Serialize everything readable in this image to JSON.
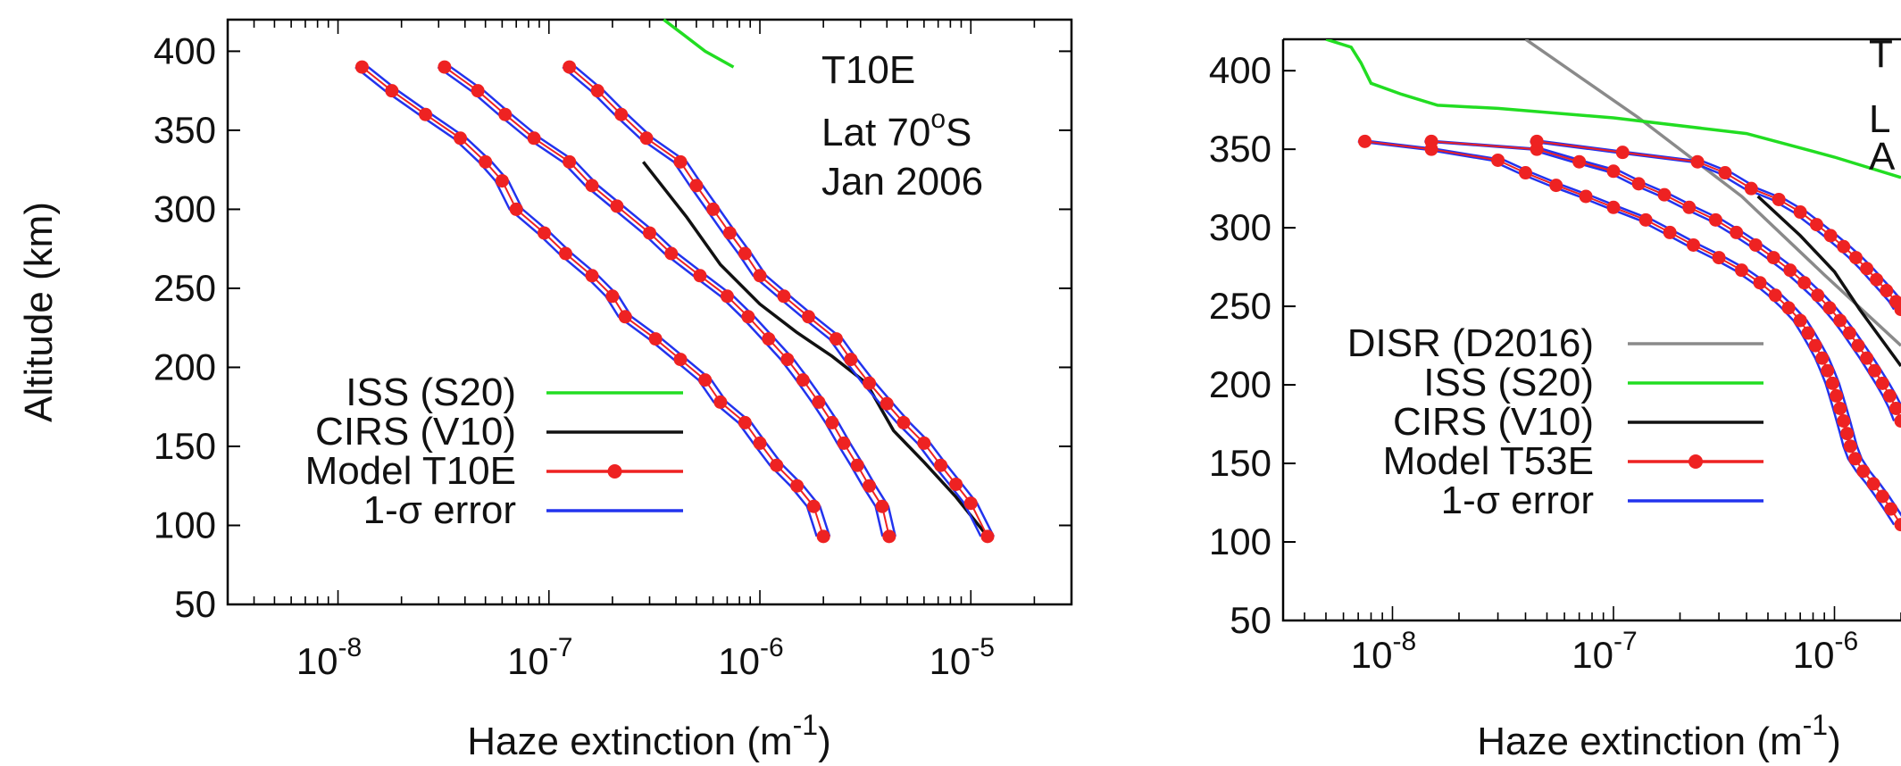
{
  "figure": {
    "colors": {
      "iss": "#22dd22",
      "cirs": "#111111",
      "model": "#ee2222",
      "error": "#2233ee",
      "disr": "#8a8a8a"
    }
  },
  "chart_data": [
    {
      "type": "line",
      "panel": "left",
      "xscale": "log",
      "xlim": [
        3e-09,
        3e-05
      ],
      "ylim": [
        50,
        420
      ],
      "xlabel": "Haze extinction (m",
      "xlabel_sup": "-1",
      "xlabel_end": ")",
      "ylabel": "Altitude (km)",
      "y_ticks": [
        400,
        350,
        300,
        250,
        200,
        150,
        100,
        50
      ],
      "x_ticks": [
        {
          "value": 1e-08,
          "base": "10",
          "exp": "-8"
        },
        {
          "value": 1e-07,
          "base": "10",
          "exp": "-7"
        },
        {
          "value": 1e-06,
          "base": "10",
          "exp": "-6"
        },
        {
          "value": 1e-05,
          "base": "10",
          "exp": "-5"
        }
      ],
      "annotation": {
        "line1": "T10E",
        "line2_pre": "Lat 70",
        "line2_sup": "o",
        "line2_post": "S",
        "line3": "Jan 2006"
      },
      "legend": [
        {
          "label": "ISS (S20)",
          "key": "iss"
        },
        {
          "label": "CIRS (V10)",
          "key": "cirs"
        },
        {
          "label": "Model T10E",
          "key": "model"
        },
        {
          "label": "1-σ error",
          "key": "error"
        }
      ],
      "series": [
        {
          "name": "ISS (S20)",
          "key": "iss",
          "points": [
            [
              3.5e-07,
              420
            ],
            [
              4.2e-07,
              412
            ],
            [
              5.5e-07,
              400
            ],
            [
              7.5e-07,
              390
            ]
          ]
        },
        {
          "name": "CIRS (V10)",
          "key": "cirs",
          "points": [
            [
              2.8e-07,
              330
            ],
            [
              4.5e-07,
              295
            ],
            [
              6.5e-07,
              265
            ],
            [
              1e-06,
              240
            ],
            [
              1.5e-06,
              222
            ],
            [
              2.2e-06,
              207
            ],
            [
              3.2e-06,
              190
            ],
            [
              4.3e-06,
              160
            ],
            [
              6e-06,
              140
            ],
            [
              8.5e-06,
              118
            ],
            [
              1.2e-05,
              93
            ]
          ]
        },
        {
          "name": "Model T10E",
          "key": "model",
          "group": "low",
          "points": [
            [
              1.3e-08,
              390
            ],
            [
              1.8e-08,
              375
            ],
            [
              2.6e-08,
              360
            ],
            [
              3.8e-08,
              345
            ],
            [
              5e-08,
              330
            ],
            [
              6e-08,
              318
            ],
            [
              7e-08,
              300
            ],
            [
              9.5e-08,
              285
            ],
            [
              1.2e-07,
              272
            ],
            [
              1.6e-07,
              258
            ],
            [
              2e-07,
              245
            ],
            [
              2.3e-07,
              232
            ],
            [
              3.2e-07,
              218
            ],
            [
              4.2e-07,
              205
            ],
            [
              5.5e-07,
              192
            ],
            [
              6.5e-07,
              178
            ],
            [
              8.5e-07,
              165
            ],
            [
              1e-06,
              152
            ],
            [
              1.2e-06,
              138
            ],
            [
              1.5e-06,
              125
            ],
            [
              1.8e-06,
              112
            ],
            [
              2e-06,
              93
            ]
          ]
        },
        {
          "name": "Model T10E",
          "key": "model",
          "group": "mid",
          "points": [
            [
              3.2e-08,
              390
            ],
            [
              4.6e-08,
              375
            ],
            [
              6.2e-08,
              360
            ],
            [
              8.5e-08,
              345
            ],
            [
              1.25e-07,
              330
            ],
            [
              1.6e-07,
              315
            ],
            [
              2.1e-07,
              302
            ],
            [
              3e-07,
              285
            ],
            [
              3.8e-07,
              272
            ],
            [
              5.2e-07,
              258
            ],
            [
              7e-07,
              245
            ],
            [
              8.8e-07,
              232
            ],
            [
              1.1e-06,
              218
            ],
            [
              1.35e-06,
              205
            ],
            [
              1.6e-06,
              192
            ],
            [
              1.9e-06,
              178
            ],
            [
              2.2e-06,
              165
            ],
            [
              2.5e-06,
              152
            ],
            [
              2.9e-06,
              138
            ],
            [
              3.3e-06,
              125
            ],
            [
              3.8e-06,
              112
            ],
            [
              4.1e-06,
              93
            ]
          ]
        },
        {
          "name": "Model T10E",
          "key": "model",
          "group": "high",
          "points": [
            [
              1.25e-07,
              390
            ],
            [
              1.7e-07,
              375
            ],
            [
              2.2e-07,
              360
            ],
            [
              2.9e-07,
              345
            ],
            [
              4.2e-07,
              330
            ],
            [
              5e-07,
              315
            ],
            [
              6e-07,
              300
            ],
            [
              7.2e-07,
              285
            ],
            [
              8.5e-07,
              272
            ],
            [
              1e-06,
              258
            ],
            [
              1.3e-06,
              245
            ],
            [
              1.7e-06,
              232
            ],
            [
              2.3e-06,
              218
            ],
            [
              2.7e-06,
              205
            ],
            [
              3.3e-06,
              190
            ],
            [
              4e-06,
              177
            ],
            [
              4.8e-06,
              165
            ],
            [
              6e-06,
              152
            ],
            [
              7.2e-06,
              138
            ],
            [
              8.5e-06,
              126
            ],
            [
              1e-05,
              114
            ],
            [
              1.2e-05,
              93
            ]
          ]
        }
      ]
    },
    {
      "type": "line",
      "panel": "right",
      "xscale": "log",
      "xlim": [
        3.2e-09,
        2e-06
      ],
      "ylim": [
        50,
        420
      ],
      "xlabel": "Haze extinction (m",
      "xlabel_sup": "-1",
      "xlabel_end": ")",
      "y_ticks": [
        400,
        350,
        300,
        250,
        200,
        150,
        100,
        50
      ],
      "x_ticks": [
        {
          "value": 1e-08,
          "base": "10",
          "exp": "-8"
        },
        {
          "value": 1e-07,
          "base": "10",
          "exp": "-7"
        },
        {
          "value": 1e-06,
          "base": "10",
          "exp": "-6"
        }
      ],
      "annotation": {
        "line1": "T",
        "line2": "L",
        "line3": "A"
      },
      "legend": [
        {
          "label": "DISR (D2016)",
          "key": "disr"
        },
        {
          "label": "ISS (S20)",
          "key": "iss"
        },
        {
          "label": "CIRS (V10)",
          "key": "cirs"
        },
        {
          "label": "Model T53E",
          "key": "model"
        },
        {
          "label": "1-σ error",
          "key": "error"
        }
      ],
      "series": [
        {
          "name": "DISR (D2016)",
          "key": "disr",
          "points": [
            [
              4e-08,
              420
            ],
            [
              1.3e-07,
              370
            ],
            [
              3.8e-07,
              320
            ],
            [
              9e-07,
              270
            ],
            [
              2e-06,
              225
            ]
          ]
        },
        {
          "name": "ISS (S20)",
          "key": "iss",
          "points": [
            [
              5e-09,
              420
            ],
            [
              6.5e-09,
              415
            ],
            [
              7.2e-09,
              405
            ],
            [
              8e-09,
              392
            ],
            [
              1.1e-08,
              385
            ],
            [
              1.6e-08,
              378
            ],
            [
              3e-08,
              376
            ],
            [
              1e-07,
              370
            ],
            [
              4e-07,
              360
            ],
            [
              1e-06,
              345
            ],
            [
              2e-06,
              332
            ]
          ]
        },
        {
          "name": "CIRS (V10)",
          "key": "cirs",
          "points": [
            [
              4.5e-07,
              320
            ],
            [
              7e-07,
              295
            ],
            [
              1e-06,
              272
            ],
            [
              1.3e-06,
              248
            ],
            [
              2e-06,
              212
            ]
          ]
        },
        {
          "name": "Model T53E",
          "key": "model",
          "group": "low",
          "points": [
            [
              7.5e-09,
              355
            ],
            [
              1.5e-08,
              350
            ],
            [
              3e-08,
              343
            ],
            [
              4e-08,
              335
            ],
            [
              5.5e-08,
              327
            ],
            [
              7.5e-08,
              320
            ],
            [
              1e-07,
              313
            ],
            [
              1.4e-07,
              305
            ],
            [
              1.8e-07,
              297
            ],
            [
              2.3e-07,
              289
            ],
            [
              3e-07,
              281
            ],
            [
              3.8e-07,
              273
            ],
            [
              4.6e-07,
              265
            ],
            [
              5.4e-07,
              257
            ],
            [
              6.2e-07,
              249
            ],
            [
              7e-07,
              241
            ],
            [
              7.6e-07,
              233
            ],
            [
              8.2e-07,
              225
            ],
            [
              8.8e-07,
              217
            ],
            [
              9.3e-07,
              209
            ],
            [
              9.8e-07,
              201
            ],
            [
              1.02e-06,
              193
            ],
            [
              1.06e-06,
              185
            ],
            [
              1.1e-06,
              177
            ],
            [
              1.14e-06,
              169
            ],
            [
              1.18e-06,
              161
            ],
            [
              1.24e-06,
              153
            ],
            [
              1.35e-06,
              145
            ],
            [
              1.5e-06,
              137
            ],
            [
              1.65e-06,
              129
            ],
            [
              1.8e-06,
              121
            ],
            [
              2e-06,
              111
            ]
          ]
        },
        {
          "name": "Model T53E",
          "key": "model",
          "group": "mid",
          "points": [
            [
              1.5e-08,
              355
            ],
            [
              4.5e-08,
              350
            ],
            [
              7e-08,
              342
            ],
            [
              1e-07,
              336
            ],
            [
              1.3e-07,
              328
            ],
            [
              1.7e-07,
              321
            ],
            [
              2.2e-07,
              313
            ],
            [
              2.9e-07,
              305
            ],
            [
              3.6e-07,
              297
            ],
            [
              4.4e-07,
              289
            ],
            [
              5.3e-07,
              281
            ],
            [
              6.3e-07,
              273
            ],
            [
              7.3e-07,
              265
            ],
            [
              8.4e-07,
              257
            ],
            [
              9.5e-07,
              249
            ],
            [
              1.06e-06,
              241
            ],
            [
              1.17e-06,
              233
            ],
            [
              1.28e-06,
              225
            ],
            [
              1.4e-06,
              217
            ],
            [
              1.52e-06,
              209
            ],
            [
              1.65e-06,
              201
            ],
            [
              1.78e-06,
              193
            ],
            [
              1.9e-06,
              185
            ],
            [
              2e-06,
              177
            ]
          ]
        },
        {
          "name": "Model T53E",
          "key": "model",
          "group": "high",
          "points": [
            [
              4.5e-08,
              355
            ],
            [
              1.1e-07,
              348
            ],
            [
              2.4e-07,
              342
            ],
            [
              3.2e-07,
              335
            ],
            [
              4.2e-07,
              325
            ],
            [
              5.6e-07,
              318
            ],
            [
              7e-07,
              310
            ],
            [
              8.3e-07,
              302
            ],
            [
              9.6e-07,
              295
            ],
            [
              1.1e-06,
              288
            ],
            [
              1.25e-06,
              281
            ],
            [
              1.4e-06,
              274
            ],
            [
              1.55e-06,
              267
            ],
            [
              1.72e-06,
              260
            ],
            [
              1.9e-06,
              253
            ],
            [
              2e-06,
              248
            ]
          ]
        }
      ]
    }
  ]
}
